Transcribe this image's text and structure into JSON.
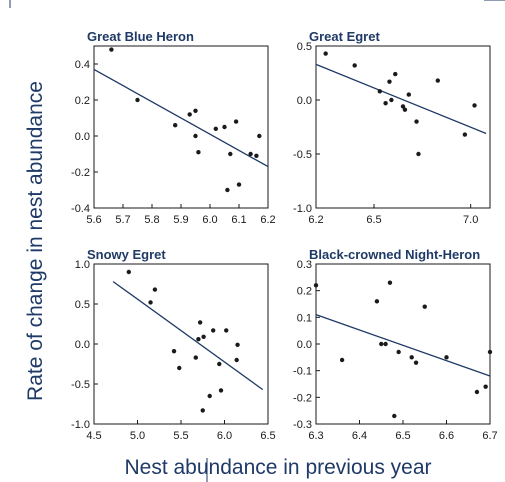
{
  "figure": {
    "ylabel": "Rate of change in nest abundance",
    "xlabel": "Nest abundance in previous year",
    "colors": {
      "label": "#1f3a66",
      "points": "#1a1a1a",
      "trend": "#1f3a66",
      "frame": "#1a1a1a"
    }
  },
  "chart_data": [
    {
      "type": "scatter",
      "title": "Great Blue Heron",
      "xlim": [
        5.6,
        6.2
      ],
      "ylim": [
        -0.4,
        0.5
      ],
      "xticks": [
        5.6,
        5.7,
        5.8,
        5.9,
        6.0,
        6.1,
        6.2
      ],
      "yticks": [
        -0.4,
        -0.2,
        0.0,
        0.2,
        0.4
      ],
      "x_tick_labels": [
        "5.6",
        "5.7",
        "5.8",
        "5.9",
        "6.0",
        "6.1",
        "6.2"
      ],
      "y_tick_labels": [
        "-0.4",
        "-0.2",
        "0.0",
        "0.2",
        "0.4"
      ],
      "points": [
        [
          5.66,
          0.48
        ],
        [
          5.75,
          0.2
        ],
        [
          5.88,
          0.06
        ],
        [
          5.93,
          0.12
        ],
        [
          5.95,
          0.14
        ],
        [
          5.95,
          0.0
        ],
        [
          5.96,
          -0.09
        ],
        [
          6.02,
          0.04
        ],
        [
          6.05,
          0.05
        ],
        [
          6.06,
          -0.3
        ],
        [
          6.07,
          -0.1
        ],
        [
          6.09,
          0.08
        ],
        [
          6.1,
          -0.27
        ],
        [
          6.14,
          -0.1
        ],
        [
          6.16,
          -0.11
        ],
        [
          6.17,
          0.0
        ]
      ],
      "trend": [
        [
          5.6,
          0.37
        ],
        [
          6.2,
          -0.17
        ]
      ]
    },
    {
      "type": "scatter",
      "title": "Great Egret",
      "xlim": [
        6.2,
        7.1
      ],
      "ylim": [
        -1.0,
        0.5
      ],
      "xticks": [
        6.2,
        6.5,
        7.0
      ],
      "yticks": [
        -1.0,
        -0.5,
        0.0,
        0.5
      ],
      "x_tick_labels": [
        "6.2",
        "6.5",
        "7.0"
      ],
      "y_tick_labels": [
        "-1.0",
        "-0.5",
        "0.0",
        "0.5"
      ],
      "points": [
        [
          6.25,
          0.43
        ],
        [
          6.4,
          0.32
        ],
        [
          6.53,
          0.08
        ],
        [
          6.56,
          -0.03
        ],
        [
          6.58,
          0.17
        ],
        [
          6.59,
          0.0
        ],
        [
          6.61,
          0.24
        ],
        [
          6.65,
          -0.06
        ],
        [
          6.66,
          -0.09
        ],
        [
          6.68,
          0.05
        ],
        [
          6.72,
          -0.2
        ],
        [
          6.73,
          -0.5
        ],
        [
          6.83,
          0.18
        ],
        [
          6.97,
          -0.32
        ],
        [
          7.02,
          -0.05
        ]
      ],
      "trend": [
        [
          6.2,
          0.33
        ],
        [
          7.08,
          -0.31
        ]
      ]
    },
    {
      "type": "scatter",
      "title": "Snowy Egret",
      "xlim": [
        4.5,
        6.5
      ],
      "ylim": [
        -1.0,
        1.0
      ],
      "xticks": [
        4.5,
        5.0,
        5.5,
        6.0,
        6.5
      ],
      "yticks": [
        -1.0,
        -0.5,
        0.0,
        0.5,
        1.0
      ],
      "x_tick_labels": [
        "4.5",
        "5.0",
        "5.5",
        "6.0",
        "6.5"
      ],
      "y_tick_labels": [
        "-1.0",
        "-0.5",
        "0.0",
        "0.5",
        "1.0"
      ],
      "points": [
        [
          4.9,
          0.9
        ],
        [
          5.15,
          0.52
        ],
        [
          5.2,
          0.68
        ],
        [
          5.42,
          -0.09
        ],
        [
          5.48,
          -0.3
        ],
        [
          5.67,
          -0.17
        ],
        [
          5.7,
          0.06
        ],
        [
          5.72,
          0.27
        ],
        [
          5.76,
          0.09
        ],
        [
          5.75,
          -0.83
        ],
        [
          5.83,
          -0.65
        ],
        [
          5.87,
          0.17
        ],
        [
          5.94,
          -0.25
        ],
        [
          5.96,
          -0.58
        ],
        [
          6.02,
          0.17
        ],
        [
          6.14,
          -0.2
        ],
        [
          6.15,
          -0.01
        ]
      ],
      "trend": [
        [
          4.72,
          0.78
        ],
        [
          6.44,
          -0.57
        ]
      ]
    },
    {
      "type": "scatter",
      "title": "Black-crowned Night-Heron",
      "xlim": [
        6.3,
        6.7
      ],
      "ylim": [
        -0.3,
        0.3
      ],
      "xticks": [
        6.3,
        6.4,
        6.5,
        6.6,
        6.7
      ],
      "yticks": [
        -0.3,
        -0.2,
        -0.1,
        0.0,
        0.1,
        0.2,
        0.3
      ],
      "x_tick_labels": [
        "6.3",
        "6.4",
        "6.5",
        "6.6",
        "6.7"
      ],
      "y_tick_labels": [
        "-0.3",
        "-0.2",
        "-0.1",
        "0.0",
        "0.1",
        "0.2",
        "0.3"
      ],
      "points": [
        [
          6.3,
          0.22
        ],
        [
          6.36,
          -0.06
        ],
        [
          6.44,
          0.16
        ],
        [
          6.45,
          0.0
        ],
        [
          6.46,
          0.0
        ],
        [
          6.47,
          0.23
        ],
        [
          6.48,
          -0.27
        ],
        [
          6.49,
          -0.03
        ],
        [
          6.52,
          -0.05
        ],
        [
          6.53,
          -0.07
        ],
        [
          6.55,
          0.14
        ],
        [
          6.6,
          -0.05
        ],
        [
          6.67,
          -0.18
        ],
        [
          6.69,
          -0.16
        ],
        [
          6.7,
          -0.03
        ]
      ],
      "trend": [
        [
          6.3,
          0.11
        ],
        [
          6.7,
          -0.12
        ]
      ]
    }
  ]
}
